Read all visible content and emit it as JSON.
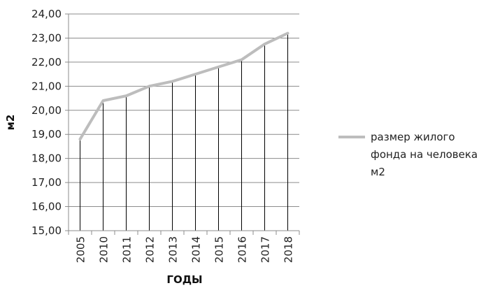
{
  "chart_data": {
    "type": "line",
    "title": "",
    "xlabel": "ГОДЫ",
    "ylabel": "м2",
    "categories": [
      "2005",
      "2010",
      "2011",
      "2012",
      "2013",
      "2014",
      "2015",
      "2016",
      "2017",
      "2018"
    ],
    "series": [
      {
        "name": "размер жилого фонда на человека м2",
        "values": [
          18.8,
          20.4,
          20.6,
          21.0,
          21.2,
          21.5,
          21.8,
          22.1,
          22.75,
          23.2
        ],
        "color": "#bdbdbd"
      }
    ],
    "ylim": [
      15,
      24
    ],
    "yticks": [
      "15,00",
      "16,00",
      "17,00",
      "18,00",
      "19,00",
      "20,00",
      "21,00",
      "22,00",
      "23,00",
      "24,00"
    ],
    "grid": true,
    "drop_lines": true,
    "legend_position": "right",
    "legend_lines": [
      "размер жилого",
      "фонда на человека",
      "м2"
    ]
  }
}
